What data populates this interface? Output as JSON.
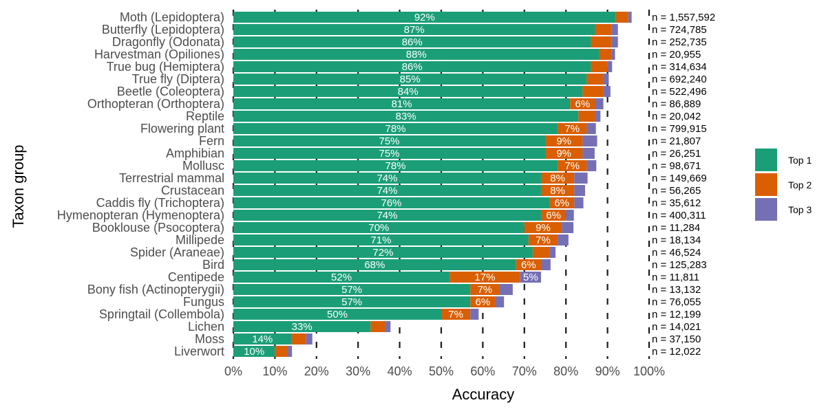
{
  "chart_data": {
    "type": "bar",
    "orientation": "horizontal",
    "stacked": true,
    "xlabel": "Accuracy",
    "ylabel": "Taxon group",
    "xlim": [
      0,
      100
    ],
    "x_ticks": [
      "0%",
      "10%",
      "20%",
      "30%",
      "40%",
      "50%",
      "60%",
      "70%",
      "80%",
      "90%",
      "100%"
    ],
    "grid": "dashed vertical lines at each 10% tick, drawn behind bars",
    "legend_position": "right",
    "categories": [
      "Moth (Lepidoptera)",
      "Butterfly (Lepidoptera)",
      "Dragonfly (Odonata)",
      "Harvestman (Opiliones)",
      "True bug (Hemiptera)",
      "True fly (Diptera)",
      "Beetle (Coleoptera)",
      "Orthopteran (Orthoptera)",
      "Reptile",
      "Flowering plant",
      "Fern",
      "Amphibian",
      "Mollusc",
      "Terrestrial mammal",
      "Crustacean",
      "Caddis fly (Trichoptera)",
      "Hymenopteran (Hymenoptera)",
      "Booklouse (Psocoptera)",
      "Millipede",
      "Spider (Araneae)",
      "Bird",
      "Centipede",
      "Bony fish (Actinopterygii)",
      "Fungus",
      "Springtail (Collembola)",
      "Lichen",
      "Moss",
      "Liverwort"
    ],
    "series": [
      {
        "name": "Top 1",
        "color": "#1b9e77",
        "values": [
          92,
          87,
          86,
          88,
          86,
          85,
          84,
          81,
          83,
          78,
          75,
          75,
          78,
          74,
          74,
          76,
          74,
          70,
          71,
          72,
          68,
          52,
          57,
          57,
          50,
          33,
          14,
          10
        ],
        "data_labels": [
          "92%",
          "87%",
          "86%",
          "88%",
          "86%",
          "85%",
          "84%",
          "81%",
          "83%",
          "78%",
          "75%",
          "75%",
          "78%",
          "74%",
          "74%",
          "76%",
          "74%",
          "70%",
          "71%",
          "72%",
          "68%",
          "52%",
          "57%",
          "57%",
          "50%",
          "33%",
          "14%",
          "10%"
        ]
      },
      {
        "name": "Top 2",
        "color": "#d95f02",
        "values": [
          3,
          4,
          5,
          3,
          4,
          4,
          5,
          6,
          4,
          7,
          9,
          9,
          7,
          8,
          8,
          6,
          6,
          9,
          7,
          4,
          6,
          17,
          7,
          6,
          7,
          3.5,
          3.5,
          3
        ],
        "data_labels": [
          "",
          "",
          "",
          "",
          "",
          "",
          "",
          "6%",
          "",
          "7%",
          "9%",
          "9%",
          "7%",
          "8%",
          "8%",
          "6%",
          "6%",
          "9%",
          "7%",
          "",
          "6%",
          "17%",
          "7%",
          "6%",
          "7%",
          "",
          "",
          ""
        ]
      },
      {
        "name": "Top 3",
        "color": "#7570b3",
        "values": [
          0.8,
          1.5,
          1.5,
          0.8,
          1.1,
          1.3,
          1.7,
          2.0,
          1.3,
          2.2,
          3.5,
          2.9,
          2.3,
          3.2,
          2.6,
          2.2,
          1.9,
          2.8,
          2.6,
          1.5,
          2.3,
          5,
          3.2,
          2.1,
          2.0,
          1.3,
          1.5,
          1.1
        ],
        "data_labels": [
          "",
          "",
          "",
          "",
          "",
          "",
          "",
          "",
          "",
          "",
          "",
          "",
          "",
          "",
          "",
          "",
          "",
          "",
          "",
          "",
          "",
          "5%",
          "",
          "",
          "",
          "",
          "",
          ""
        ]
      }
    ],
    "n_labels": [
      "n = 1,557,592",
      "n = 724,785",
      "n = 252,735",
      "n = 20,955",
      "n = 314,634",
      "n = 692,240",
      "n = 522,496",
      "n = 86,889",
      "n = 20,042",
      "n = 799,915",
      "n = 21,807",
      "n = 26,251",
      "n = 98,671",
      "n = 149,669",
      "n = 56,265",
      "n = 35,612",
      "n = 400,311",
      "n = 11,284",
      "n = 18,134",
      "n = 46,524",
      "n = 125,283",
      "n = 11,811",
      "n = 13,132",
      "n = 76,055",
      "n = 12,199",
      "n = 14,021",
      "n = 37,150",
      "n = 12,022"
    ]
  }
}
